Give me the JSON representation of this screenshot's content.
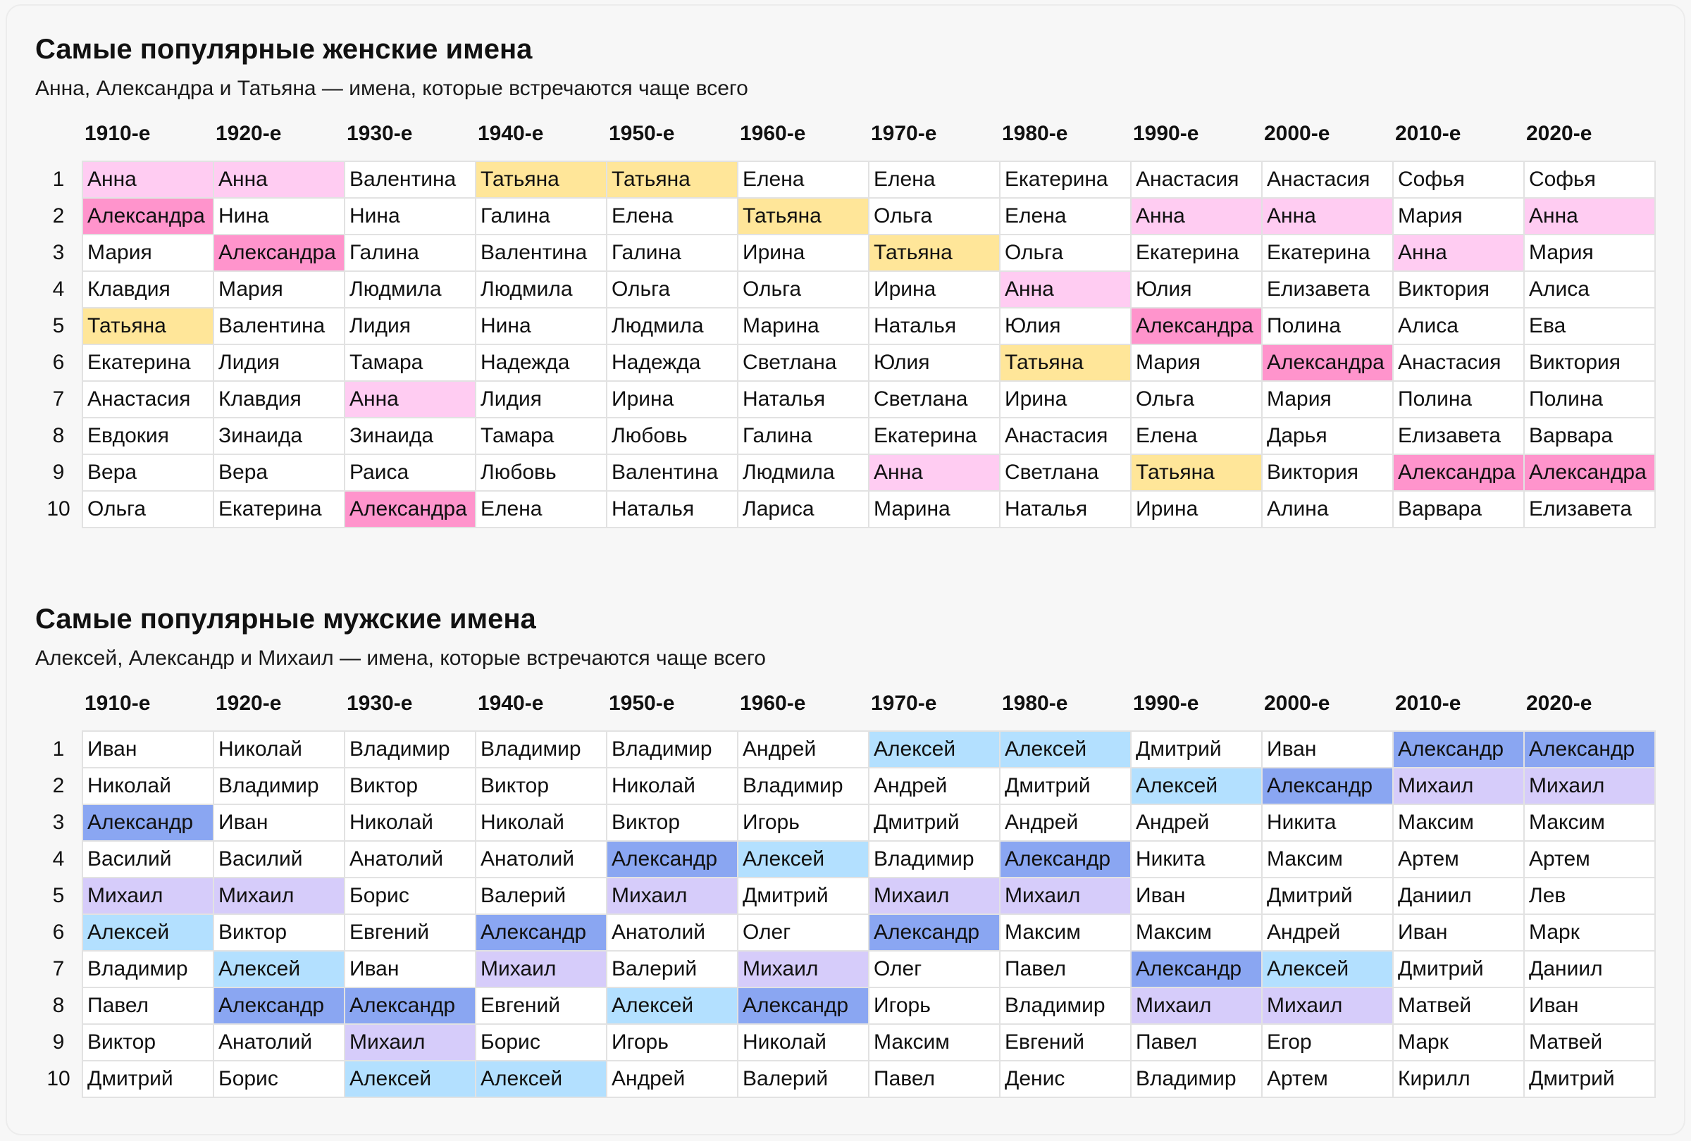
{
  "colors": {
    "Анна": "#ffccf2",
    "Александра": "#ff94cc",
    "Татьяна": "#ffe699",
    "Алексей": "#b3e0ff",
    "Александр": "#8aa6f2",
    "Михаил": "#d6ccfa"
  },
  "decades": [
    "1910-е",
    "1920-е",
    "1930-е",
    "1940-е",
    "1950-е",
    "1960-е",
    "1970-е",
    "1980-е",
    "1990-е",
    "2000-е",
    "2010-е",
    "2020-е"
  ],
  "ranks": [
    "1",
    "2",
    "3",
    "4",
    "5",
    "6",
    "7",
    "8",
    "9",
    "10"
  ],
  "women": {
    "title": "Самые популярные женские имена",
    "subtitle": "Анна, Александра и Татьяна — имена, которые встречаются чаще всего",
    "rows": [
      [
        "Анна",
        "Анна",
        "Валентина",
        "Татьяна",
        "Татьяна",
        "Елена",
        "Елена",
        "Екатерина",
        "Анастасия",
        "Анастасия",
        "Софья",
        "Софья"
      ],
      [
        "Александра",
        "Нина",
        "Нина",
        "Галина",
        "Елена",
        "Татьяна",
        "Ольга",
        "Елена",
        "Анна",
        "Анна",
        "Мария",
        "Анна"
      ],
      [
        "Мария",
        "Александра",
        "Галина",
        "Валентина",
        "Галина",
        "Ирина",
        "Татьяна",
        "Ольга",
        "Екатерина",
        "Екатерина",
        "Анна",
        "Мария"
      ],
      [
        "Клавдия",
        "Мария",
        "Людмила",
        "Людмила",
        "Ольга",
        "Ольга",
        "Ирина",
        "Анна",
        "Юлия",
        "Елизавета",
        "Виктория",
        "Алиса"
      ],
      [
        "Татьяна",
        "Валентина",
        "Лидия",
        "Нина",
        "Людмила",
        "Марина",
        "Наталья",
        "Юлия",
        "Александра",
        "Полина",
        "Алиса",
        "Ева"
      ],
      [
        "Екатерина",
        "Лидия",
        "Тамара",
        "Надежда",
        "Надежда",
        "Светлана",
        "Юлия",
        "Татьяна",
        "Мария",
        "Александра",
        "Анастасия",
        "Виктория"
      ],
      [
        "Анастасия",
        "Клавдия",
        "Анна",
        "Лидия",
        "Ирина",
        "Наталья",
        "Светлана",
        "Ирина",
        "Ольга",
        "Мария",
        "Полина",
        "Полина"
      ],
      [
        "Евдокия",
        "Зинаида",
        "Зинаида",
        "Тамара",
        "Любовь",
        "Галина",
        "Екатерина",
        "Анастасия",
        "Елена",
        "Дарья",
        "Елизавета",
        "Варвара"
      ],
      [
        "Вера",
        "Вера",
        "Раиса",
        "Любовь",
        "Валентина",
        "Людмила",
        "Анна",
        "Светлана",
        "Татьяна",
        "Виктория",
        "Александра",
        "Александра"
      ],
      [
        "Ольга",
        "Екатерина",
        "Александра",
        "Елена",
        "Наталья",
        "Лариса",
        "Марина",
        "Наталья",
        "Ирина",
        "Алина",
        "Варвара",
        "Елизавета"
      ]
    ]
  },
  "men": {
    "title": "Самые популярные мужские имена",
    "subtitle": "Алексей, Александр и Михаил — имена, которые встречаются чаще всего",
    "rows": [
      [
        "Иван",
        "Николай",
        "Владимир",
        "Владимир",
        "Владимир",
        "Андрей",
        "Алексей",
        "Алексей",
        "Дмитрий",
        "Иван",
        "Александр",
        "Александр"
      ],
      [
        "Николай",
        "Владимир",
        "Виктор",
        "Виктор",
        "Николай",
        "Владимир",
        "Андрей",
        "Дмитрий",
        "Алексей",
        "Александр",
        "Михаил",
        "Михаил"
      ],
      [
        "Александр",
        "Иван",
        "Николай",
        "Николай",
        "Виктор",
        "Игорь",
        "Дмитрий",
        "Андрей",
        "Андрей",
        "Никита",
        "Максим",
        "Максим"
      ],
      [
        "Василий",
        "Василий",
        "Анатолий",
        "Анатолий",
        "Александр",
        "Алексей",
        "Владимир",
        "Александр",
        "Никита",
        "Максим",
        "Артем",
        "Артем"
      ],
      [
        "Михаил",
        "Михаил",
        "Борис",
        "Валерий",
        "Михаил",
        "Дмитрий",
        "Михаил",
        "Михаил",
        "Иван",
        "Дмитрий",
        "Даниил",
        "Лев"
      ],
      [
        "Алексей",
        "Виктор",
        "Евгений",
        "Александр",
        "Анатолий",
        "Олег",
        "Александр",
        "Максим",
        "Максим",
        "Андрей",
        "Иван",
        "Марк"
      ],
      [
        "Владимир",
        "Алексей",
        "Иван",
        "Михаил",
        "Валерий",
        "Михаил",
        "Олег",
        "Павел",
        "Александр",
        "Алексей",
        "Дмитрий",
        "Даниил"
      ],
      [
        "Павел",
        "Александр",
        "Александр",
        "Евгений",
        "Алексей",
        "Александр",
        "Игорь",
        "Владимир",
        "Михаил",
        "Михаил",
        "Матвей",
        "Иван"
      ],
      [
        "Виктор",
        "Анатолий",
        "Михаил",
        "Борис",
        "Игорь",
        "Николай",
        "Максим",
        "Евгений",
        "Павел",
        "Егор",
        "Марк",
        "Матвей"
      ],
      [
        "Дмитрий",
        "Борис",
        "Алексей",
        "Алексей",
        "Андрей",
        "Валерий",
        "Павел",
        "Денис",
        "Владимир",
        "Артем",
        "Кирилл",
        "Дмитрий"
      ]
    ]
  }
}
